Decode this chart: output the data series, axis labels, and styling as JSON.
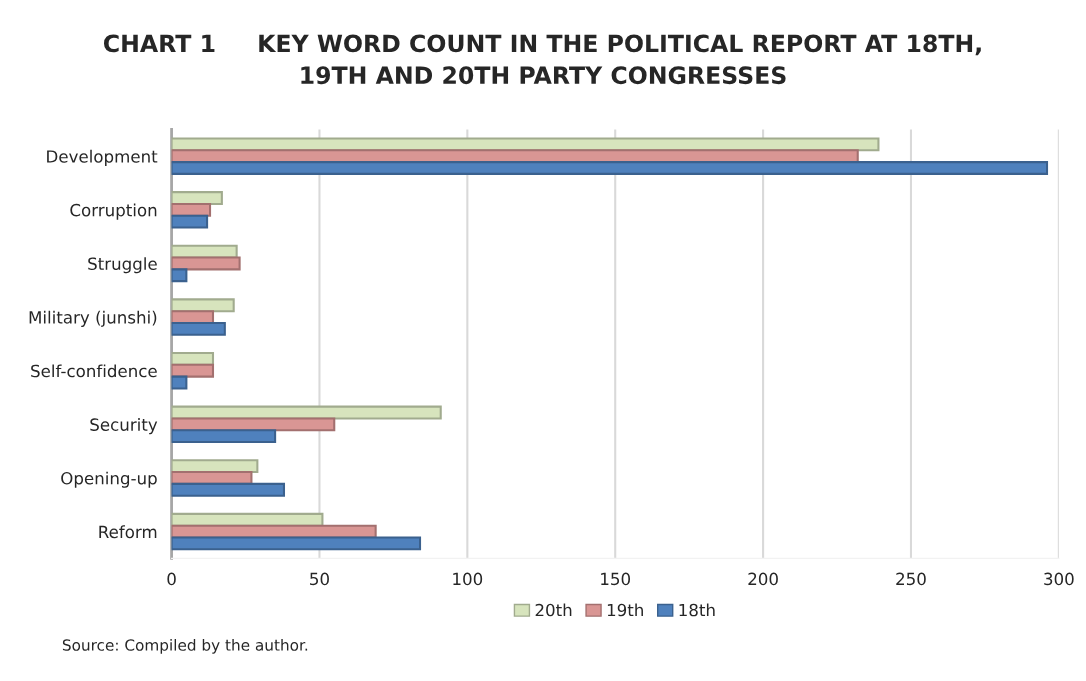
{
  "chart_data": {
    "type": "bar",
    "orientation": "horizontal",
    "title": "CHART 1     KEY WORD COUNT IN THE POLITICAL REPORT AT 18TH,\n19TH AND 20TH PARTY CONGRESSES",
    "categories": [
      "Development",
      "Corruption",
      "Struggle",
      "Military (junshi)",
      "Self-confidence",
      "Security",
      "Opening-up",
      "Reform"
    ],
    "series": [
      {
        "name": "20th",
        "color": "#d7e4bd",
        "values": [
          239,
          17,
          22,
          21,
          14,
          91,
          29,
          51
        ]
      },
      {
        "name": "19th",
        "color": "#d99694",
        "values": [
          232,
          13,
          23,
          14,
          14,
          55,
          27,
          69
        ]
      },
      {
        "name": "18th",
        "color": "#4f81bd",
        "values": [
          296,
          12,
          5,
          18,
          5,
          35,
          38,
          84
        ]
      }
    ],
    "xlim": [
      0,
      300
    ],
    "xticks": [
      0,
      50,
      100,
      150,
      200,
      250,
      300
    ],
    "grid": "x",
    "legend": "bottom",
    "annotations": [
      "Source: Compiled by the author."
    ]
  }
}
